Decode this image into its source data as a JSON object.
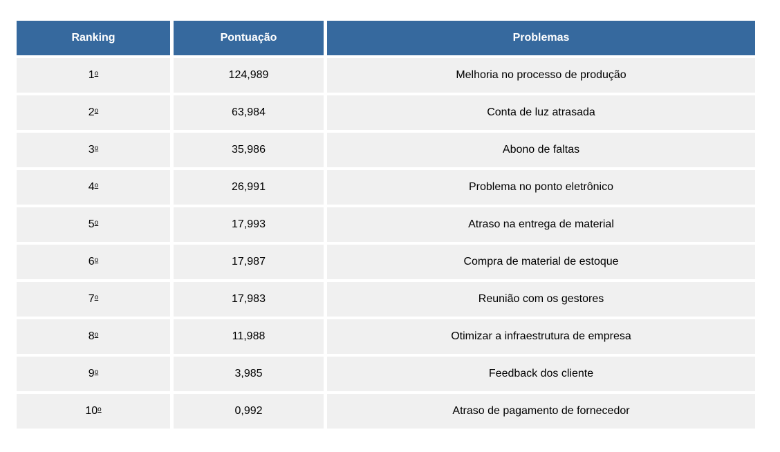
{
  "colors": {
    "header_bg": "#36699E",
    "header_text": "#FFFFFF",
    "row_bg": "#F0F0F0",
    "body_text": "#000000",
    "page_bg": "#FFFFFF"
  },
  "chart_data": {
    "type": "table",
    "columns": [
      "Ranking",
      "Pontuação",
      "Problemas"
    ],
    "rows": [
      {
        "ranking": "1º",
        "pontuacao": "124,989",
        "problema": "Melhoria no processo de produção"
      },
      {
        "ranking": "2º",
        "pontuacao": "63,984",
        "problema": "Conta de luz atrasada"
      },
      {
        "ranking": "3º",
        "pontuacao": "35,986",
        "problema": "Abono de faltas"
      },
      {
        "ranking": "4º",
        "pontuacao": "26,991",
        "problema": "Problema no ponto eletrônico"
      },
      {
        "ranking": "5º",
        "pontuacao": "17,993",
        "problema": "Atraso na entrega de material"
      },
      {
        "ranking": "6º",
        "pontuacao": "17,987",
        "problema": "Compra de material de estoque"
      },
      {
        "ranking": "7º",
        "pontuacao": "17,983",
        "problema": "Reunião com os gestores"
      },
      {
        "ranking": "8º",
        "pontuacao": "11,988",
        "problema": "Otimizar a infraestrutura de empresa"
      },
      {
        "ranking": "9º",
        "pontuacao": "3,985",
        "problema": "Feedback dos cliente"
      },
      {
        "ranking": "10º",
        "pontuacao": "0,992",
        "problema": "Atraso de pagamento de fornecedor"
      }
    ]
  }
}
